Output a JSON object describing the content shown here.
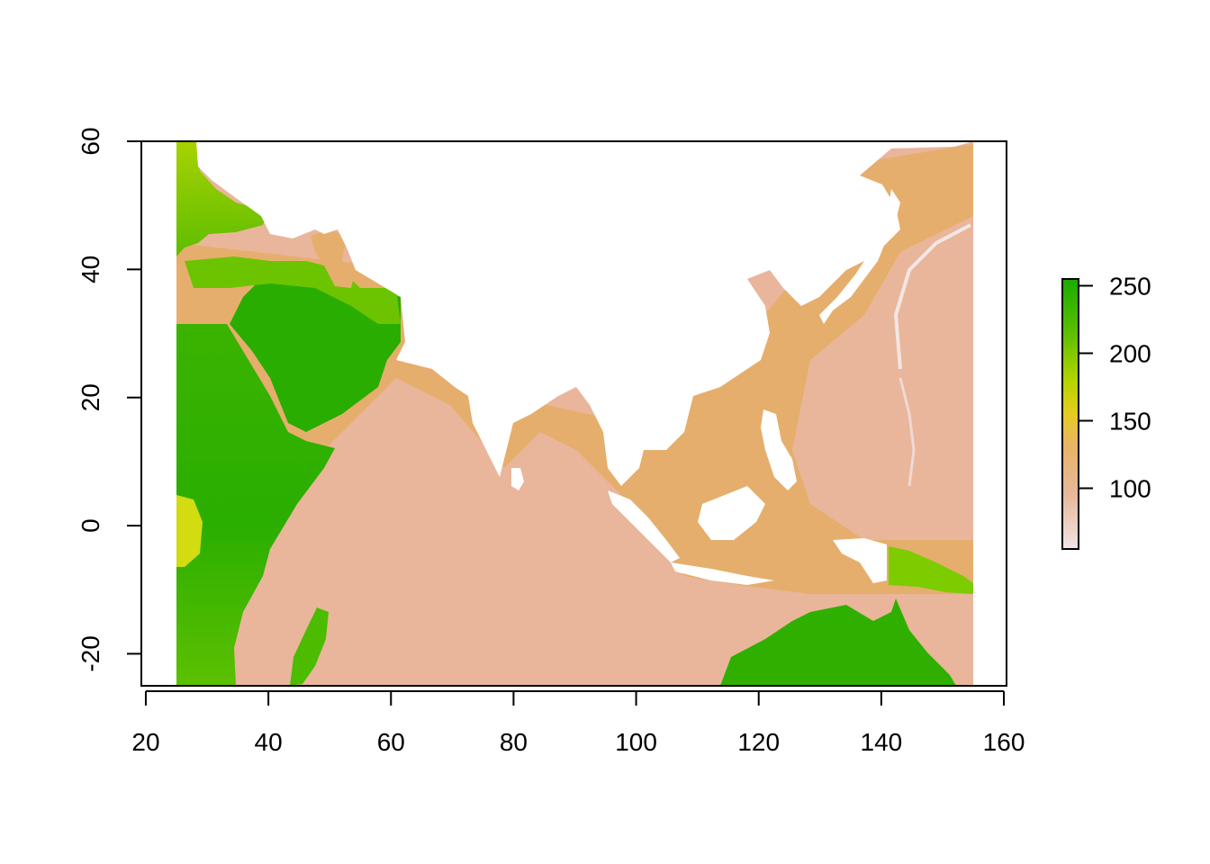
{
  "chart_data": {
    "type": "heatmap",
    "title": "",
    "xlabel": "",
    "ylabel": "",
    "xlim": [
      25,
      155
    ],
    "ylim": [
      -25,
      60
    ],
    "x_ticks": [
      20,
      40,
      60,
      80,
      100,
      120,
      140,
      160
    ],
    "y_ticks": [
      -20,
      0,
      20,
      40,
      60
    ],
    "legend": {
      "position": "right",
      "range": [
        55,
        255
      ],
      "ticks": [
        100,
        150,
        200,
        250
      ],
      "colors": [
        "#f2e4e4",
        "#e8b89a",
        "#e8b466",
        "#e6cc20",
        "#b6d400",
        "#5cc000",
        "#1aab00"
      ]
    },
    "regions": [
      {
        "name": "ocean",
        "value": 95
      },
      {
        "name": "africa",
        "value": 215
      },
      {
        "name": "arabia",
        "value": 220
      },
      {
        "name": "australia",
        "value": 220
      },
      {
        "name": "madagascar",
        "value": 200
      },
      {
        "name": "caspian",
        "value": 110
      }
    ]
  },
  "colors": {
    "ocean": "#e9b69b",
    "shelf": "#e6ae6c",
    "land_green": "#2db000",
    "land_yellow": "#cddd10",
    "trench": "#f3e6e4"
  }
}
